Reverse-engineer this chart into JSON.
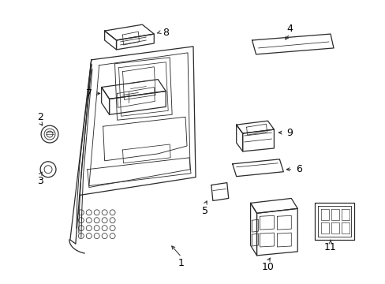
{
  "bg_color": "#ffffff",
  "line_color": "#2a2a2a",
  "label_color": "#000000",
  "fig_w": 4.89,
  "fig_h": 3.6,
  "dpi": 100
}
